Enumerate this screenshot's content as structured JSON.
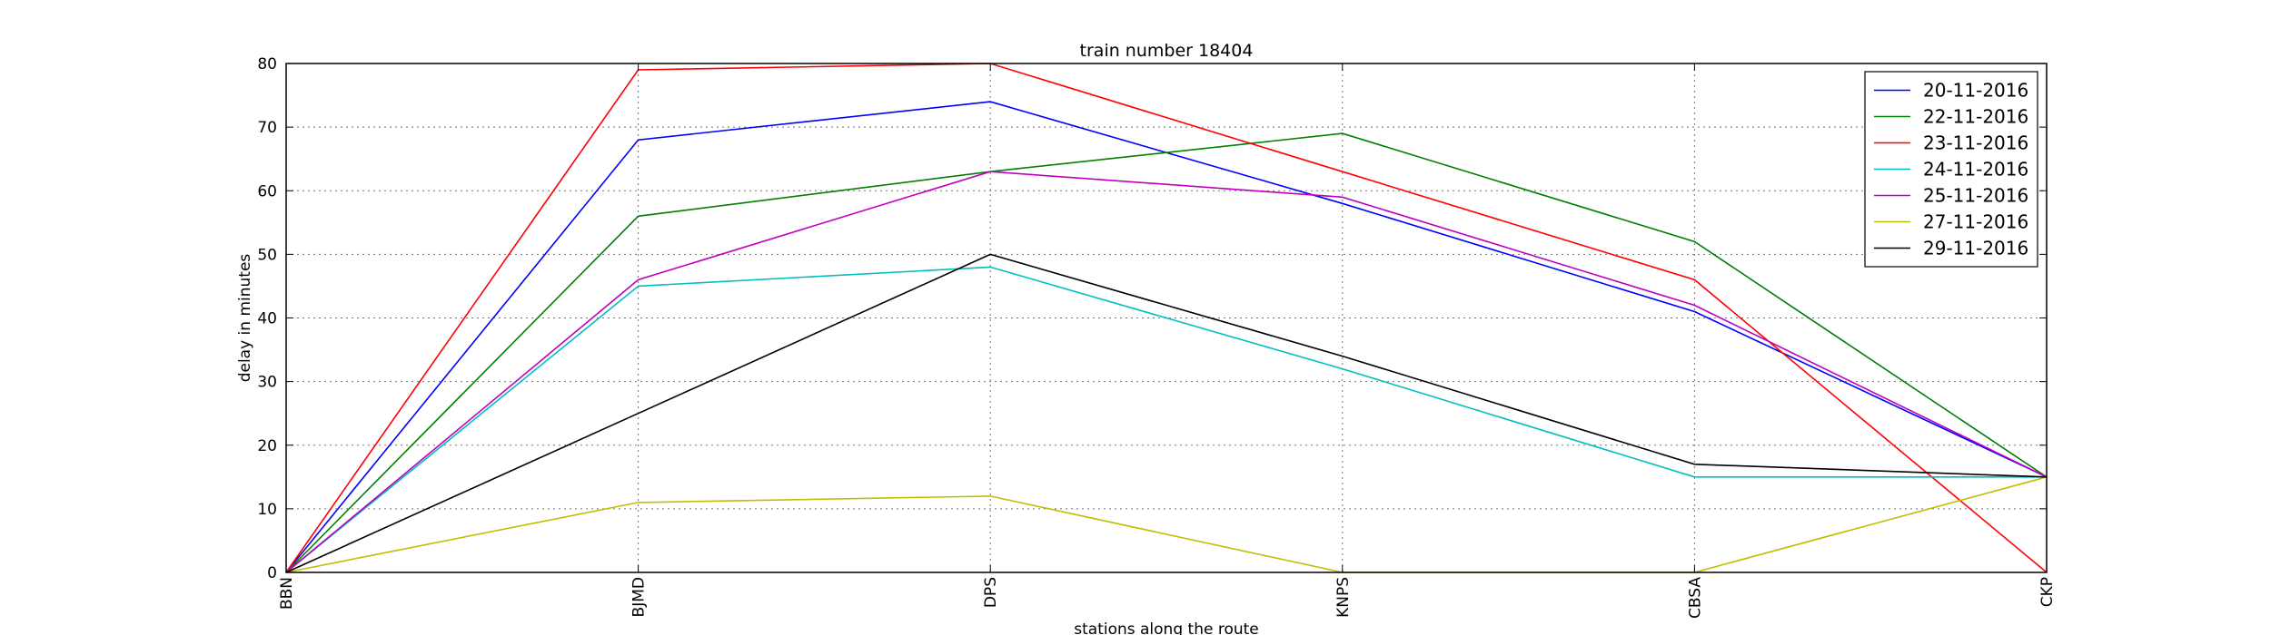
{
  "chart_data": {
    "type": "line",
    "title": "train number 18404",
    "xlabel": "stations along the route",
    "ylabel": "delay in minutes",
    "categories": [
      "BBN",
      "BJMD",
      "DPS",
      "KNPS",
      "CBSA",
      "CKP"
    ],
    "ylim": [
      0,
      80
    ],
    "yticks": [
      0,
      10,
      20,
      30,
      40,
      50,
      60,
      70,
      80
    ],
    "grid": true,
    "legend_position": "top-right",
    "series": [
      {
        "name": "20-11-2016",
        "color": "#0000ff",
        "values": [
          0,
          68,
          74,
          58,
          41,
          15
        ]
      },
      {
        "name": "22-11-2016",
        "color": "#008000",
        "values": [
          0,
          56,
          63,
          69,
          52,
          15
        ]
      },
      {
        "name": "23-11-2016",
        "color": "#ff0000",
        "values": [
          0,
          79,
          80,
          63,
          46,
          0
        ]
      },
      {
        "name": "24-11-2016",
        "color": "#00bfbf",
        "values": [
          0,
          45,
          48,
          32,
          15,
          15
        ]
      },
      {
        "name": "25-11-2016",
        "color": "#bf00bf",
        "values": [
          0,
          46,
          63,
          59,
          42,
          15
        ]
      },
      {
        "name": "27-11-2016",
        "color": "#bfbf00",
        "values": [
          0,
          11,
          12,
          0,
          0,
          15
        ]
      },
      {
        "name": "29-11-2016",
        "color": "#000000",
        "values": [
          0,
          25,
          50,
          34,
          17,
          15
        ]
      }
    ]
  }
}
